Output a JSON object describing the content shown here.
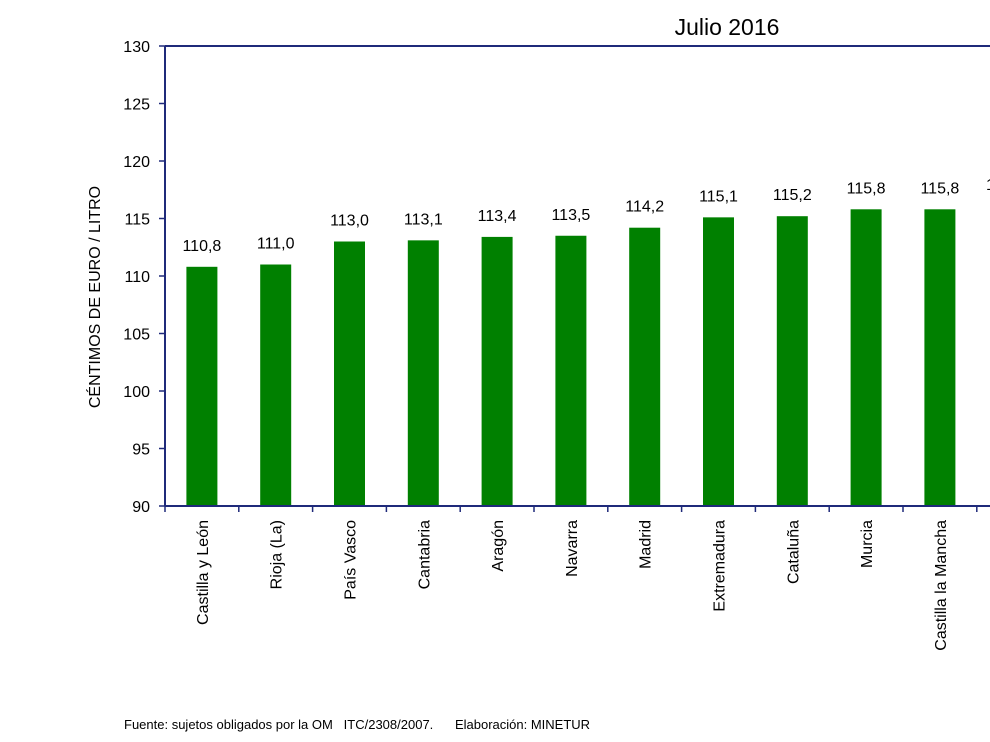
{
  "chart_data": {
    "type": "bar",
    "title": "Julio 2016",
    "xlabel": "",
    "ylabel": "CÉNTIMOS DE EURO / LITRO",
    "ylim": [
      90,
      130
    ],
    "yticks": [
      "90",
      "95",
      "100",
      "105",
      "110",
      "115",
      "120",
      "125",
      "130"
    ],
    "categories": [
      "Castilla y León",
      "Rioja (La)",
      "País Vasco",
      "Cantabria",
      "Aragón",
      "Navarra",
      "Madrid",
      "Extremadura",
      "Cataluña",
      "Murcia",
      "Castilla la Mancha"
    ],
    "values": [
      110.8,
      111.0,
      113.0,
      113.1,
      113.4,
      113.5,
      114.2,
      115.1,
      115.2,
      115.8,
      115.8
    ],
    "value_labels": [
      "110,8",
      "111,0",
      "113,0",
      "113,1",
      "113,4",
      "113,5",
      "114,2",
      "115,1",
      "115,2",
      "115,8",
      "115,8"
    ],
    "cut_label": "1",
    "bar_color": "#008000",
    "axis_color": "#1f2a7a"
  },
  "footer": {
    "source": "Fuente: sujetos obligados por la OM   ITC/2308/2007.",
    "credit": "Elaboración: MINETUR"
  }
}
